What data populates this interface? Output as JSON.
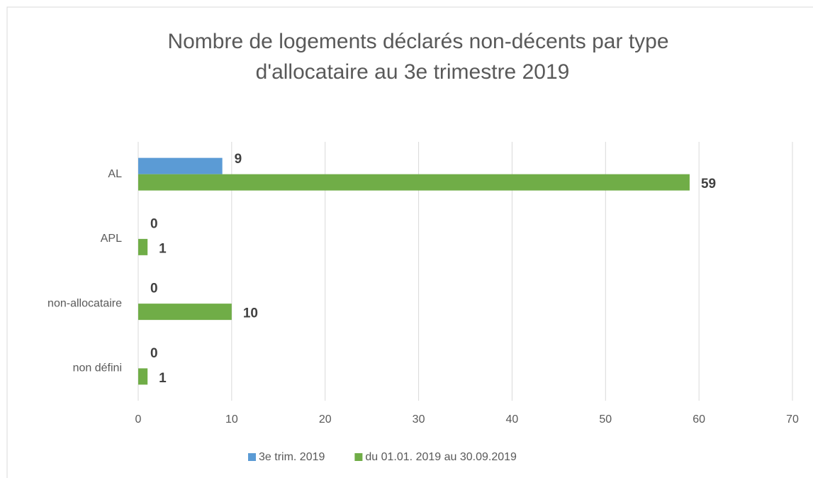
{
  "chart_data": {
    "type": "bar",
    "orientation": "horizontal",
    "title_lines": [
      "Nombre de logements déclarés non-décents par type",
      "d'allocataire au 3e trimestre 2019"
    ],
    "categories": [
      "AL",
      "APL",
      "non-allocataire",
      "non défini"
    ],
    "series": [
      {
        "name": "3e trim. 2019",
        "color": "#5b9bd5",
        "values": [
          9,
          0,
          0,
          0
        ]
      },
      {
        "name": "du 01.01. 2019 au 30.09.2019",
        "color": "#70ad47",
        "values": [
          59,
          1,
          10,
          1
        ]
      }
    ],
    "xlim": [
      0,
      70
    ],
    "xticks": [
      0,
      10,
      20,
      30,
      40,
      50,
      60,
      70
    ],
    "grid": true,
    "legend": "bottom"
  }
}
